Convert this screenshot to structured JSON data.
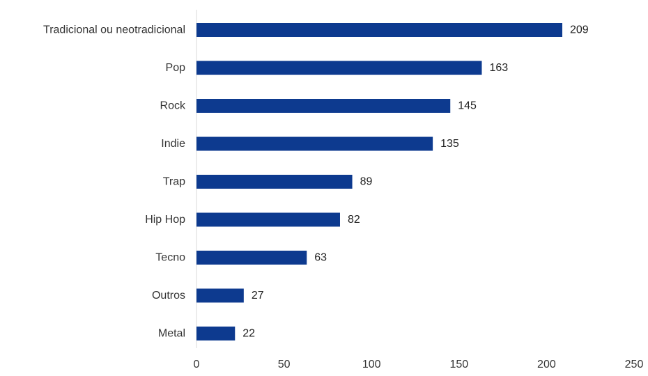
{
  "chart_data": {
    "type": "bar",
    "orientation": "horizontal",
    "categories": [
      "Tradicional ou neotradicional",
      "Pop",
      "Rock",
      "Indie",
      "Trap",
      "Hip Hop",
      "Tecno",
      "Outros",
      "Metal"
    ],
    "values": [
      209,
      163,
      145,
      135,
      89,
      82,
      63,
      27,
      22
    ],
    "value_labels": [
      "209",
      "163",
      "145",
      "135",
      "89",
      "82",
      "63",
      "27",
      "22"
    ],
    "xlim": [
      0,
      250
    ],
    "x_ticks": [
      0,
      50,
      100,
      150,
      200,
      250
    ],
    "x_tick_labels": [
      "0",
      "50",
      "100",
      "150",
      "200",
      "250"
    ],
    "title": "",
    "xlabel": "",
    "ylabel": "",
    "grid": false,
    "legend": "none",
    "bar_color": "#0d3a8f",
    "axis_color": "#d9d9d9"
  }
}
